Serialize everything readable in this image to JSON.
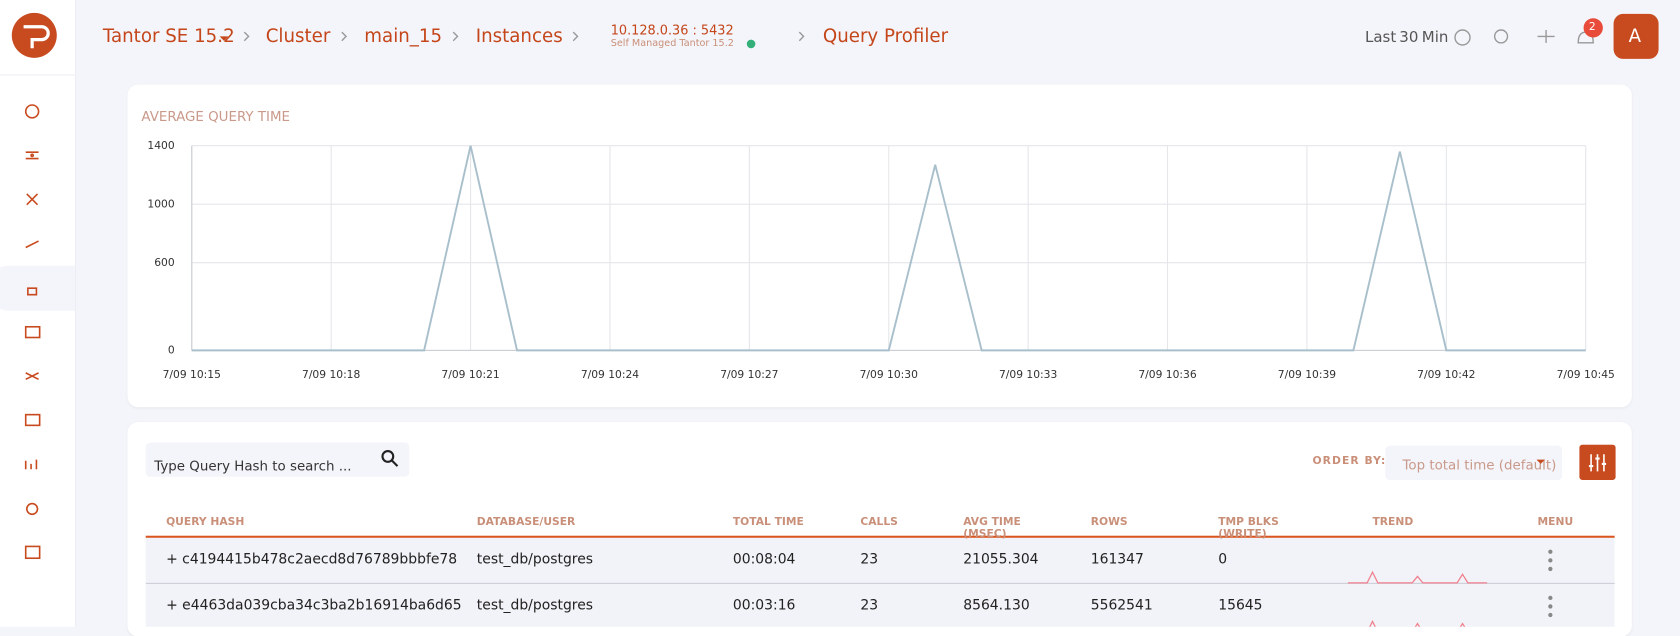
{
  "header": {
    "breadcrumbs": [
      "Tantor SE 15.2",
      "Cluster",
      "main_15",
      "Instances"
    ],
    "instance": {
      "address": "10.128.0.36 : 5432",
      "subtitle": "Self Managed Tantor 15.2"
    },
    "current": "Query Profiler",
    "range": {
      "prefix": "Last",
      "amount": "30",
      "unit": "Min"
    },
    "notifications": "2",
    "avatar": "A"
  },
  "chart": {
    "type": "line",
    "title": "AVERAGE QUERY TIME",
    "color": "#a9c0cc",
    "grid": true,
    "x": [
      "7/09 10:15",
      "7/09 10:20",
      "7/09 10:21",
      "7/09 10:22",
      "7/09 10:30",
      "7/09 10:31",
      "7/09 10:32",
      "7/09 10:40",
      "7/09 10:41",
      "7/09 10:42",
      "7/09 10:45"
    ],
    "values": [
      0,
      0,
      1400,
      0,
      0,
      1270,
      0,
      0,
      1360,
      0,
      0
    ],
    "xlim": [
      "7/09 10:15",
      "7/09 10:45"
    ],
    "xticks": [
      "7/09 10:15",
      "7/09 10:18",
      "7/09 10:21",
      "7/09 10:24",
      "7/09 10:27",
      "7/09 10:30",
      "7/09 10:33",
      "7/09 10:36",
      "7/09 10:39",
      "7/09 10:42",
      "7/09 10:45"
    ],
    "ylim": [
      0,
      1400
    ],
    "yticks": [
      0,
      600,
      1000,
      1400
    ]
  },
  "table": {
    "search_placeholder": "Type Query Hash to search ...",
    "order_label": "ORDER BY:",
    "order_value": "Top total time (default)",
    "columns": [
      "QUERY HASH",
      "DATABASE/USER",
      "TOTAL TIME",
      "CALLS",
      "AVG TIME (MSEC)",
      "ROWS",
      "TMP BLKS (WRITE)",
      "TREND",
      "MENU"
    ],
    "rows": [
      [
        "+ c4194415b478c2aecd8d76789bbbfe78",
        "test_db/postgres",
        "00:08:04",
        "23",
        "21055.304",
        "161347",
        "0"
      ],
      [
        "+ e4463da039cba34c3ba2b16914ba6d65",
        "test_db/postgres",
        "00:03:16",
        "23",
        "8564.130",
        "5562541",
        "15645"
      ]
    ]
  }
}
